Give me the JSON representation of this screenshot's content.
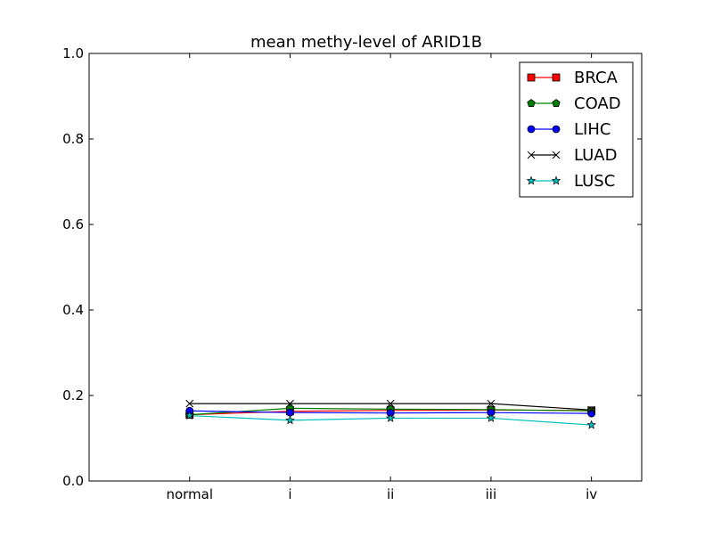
{
  "chart_data": {
    "type": "line",
    "title": "mean methy-level of ARID1B",
    "xlabel": "",
    "ylabel": "",
    "categories": [
      "normal",
      "i",
      "ii",
      "iii",
      "iv"
    ],
    "xlim": [
      -1,
      4.5
    ],
    "ylim": [
      0,
      1
    ],
    "yticks": [
      0.0,
      0.2,
      0.4,
      0.6,
      0.8,
      1.0
    ],
    "ytick_labels": [
      "0.0",
      "0.2",
      "0.4",
      "0.6",
      "0.8",
      "1.0"
    ],
    "grid": false,
    "legend_position": "top-right",
    "series": [
      {
        "name": "BRCA",
        "color": "#ff0000",
        "marker": "square",
        "values": [
          0.155,
          0.163,
          0.165,
          0.166,
          0.165
        ]
      },
      {
        "name": "COAD",
        "color": "#008000",
        "marker": "pentagon",
        "values": [
          0.155,
          0.17,
          0.168,
          0.167,
          0.164
        ]
      },
      {
        "name": "LIHC",
        "color": "#0000ff",
        "marker": "circle",
        "values": [
          0.164,
          0.16,
          0.159,
          0.16,
          0.158
        ]
      },
      {
        "name": "LUAD",
        "color": "#000000",
        "marker": "x",
        "values": [
          0.181,
          0.181,
          0.181,
          0.181,
          0.166
        ]
      },
      {
        "name": "LUSC",
        "color": "#00bfbf",
        "marker": "star",
        "values": [
          0.153,
          0.142,
          0.147,
          0.147,
          0.131
        ]
      }
    ]
  }
}
